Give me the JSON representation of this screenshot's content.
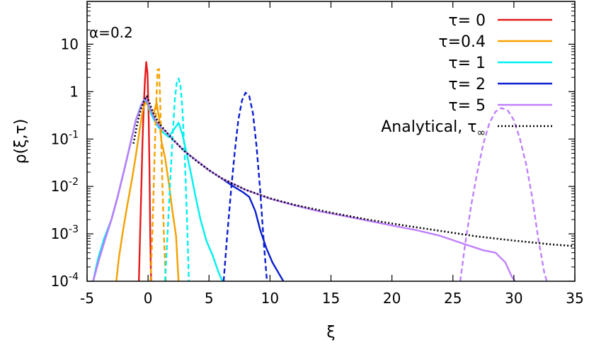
{
  "chart_data": {
    "type": "line",
    "xlabel": "ξ",
    "ylabel": "ρ(ξ,τ)",
    "annotation": "α=0.2",
    "xlim": [
      -5,
      35
    ],
    "ylim": [
      0.0001,
      80
    ],
    "yscale": "log",
    "grid": false,
    "legend_position": "top-right",
    "x_ticks": [
      {
        "v": -5,
        "label": "-5"
      },
      {
        "v": 0,
        "label": "0"
      },
      {
        "v": 5,
        "label": "5"
      },
      {
        "v": 10,
        "label": "10"
      },
      {
        "v": 15,
        "label": "15"
      },
      {
        "v": 20,
        "label": "20"
      },
      {
        "v": 25,
        "label": "25"
      },
      {
        "v": 30,
        "label": "30"
      },
      {
        "v": 35,
        "label": "35"
      }
    ],
    "y_ticks": [
      {
        "v": 10,
        "base": "10",
        "exp": ""
      },
      {
        "v": 1,
        "base": "1",
        "exp": ""
      },
      {
        "v": 0.1,
        "base": "10",
        "exp": "-1"
      },
      {
        "v": 0.01,
        "base": "10",
        "exp": "-2"
      },
      {
        "v": 0.001,
        "base": "10",
        "exp": "-3"
      },
      {
        "v": 0.0001,
        "base": "10",
        "exp": "-4"
      }
    ],
    "legend": [
      {
        "label": "τ= 0",
        "color": "#e41a1c",
        "dash": false
      },
      {
        "label": "τ=0.4",
        "color": "#f5a100",
        "dash": false
      },
      {
        "label": "τ= 1",
        "color": "#00f0f0",
        "dash": false
      },
      {
        "label": "τ= 2",
        "color": "#0a1fd0",
        "dash": false
      },
      {
        "label": "τ= 5",
        "color": "#c080ff",
        "dash": false
      },
      {
        "label": "Analytical, τ",
        "sub": "∞",
        "color": "#000000",
        "dash": true
      }
    ],
    "series": [
      {
        "color": "#e41a1c",
        "style": "solid",
        "points": [
          [
            -0.75,
            0.0001
          ],
          [
            -0.65,
            0.001
          ],
          [
            -0.55,
            0.01
          ],
          [
            -0.45,
            0.1
          ],
          [
            -0.35,
            0.5
          ],
          [
            -0.25,
            1.8
          ],
          [
            -0.15,
            4.2
          ],
          [
            -0.05,
            2.5
          ],
          [
            0.05,
            0.3
          ],
          [
            0.12,
            0.02
          ],
          [
            0.18,
            0.001
          ],
          [
            0.25,
            0.0001
          ]
        ]
      },
      {
        "color": "#f5a100",
        "style": "solid",
        "points": [
          [
            -2.6,
            0.0001
          ],
          [
            -2.4,
            0.0003
          ],
          [
            -2.1,
            0.001
          ],
          [
            -1.7,
            0.004
          ],
          [
            -1.3,
            0.015
          ],
          [
            -1.0,
            0.045
          ],
          [
            -0.7,
            0.15
          ],
          [
            -0.4,
            0.45
          ],
          [
            -0.15,
            0.62
          ],
          [
            0.1,
            0.42
          ],
          [
            0.4,
            0.3
          ],
          [
            0.7,
            0.6
          ],
          [
            0.9,
            0.28
          ],
          [
            1.1,
            0.09
          ],
          [
            1.4,
            0.04
          ],
          [
            1.7,
            0.012
          ],
          [
            2.0,
            0.003
          ],
          [
            2.3,
            0.0009
          ],
          [
            2.5,
            0.0001
          ]
        ]
      },
      {
        "color": "#00f0f0",
        "style": "solid",
        "points": [
          [
            -4.5,
            0.0001
          ],
          [
            -4.1,
            0.0003
          ],
          [
            -3.6,
            0.0008
          ],
          [
            -3.0,
            0.002
          ],
          [
            -2.5,
            0.006
          ],
          [
            -2.0,
            0.02
          ],
          [
            -1.5,
            0.07
          ],
          [
            -1.0,
            0.25
          ],
          [
            -0.6,
            0.5
          ],
          [
            -0.25,
            0.7
          ],
          [
            0.0,
            0.55
          ],
          [
            0.3,
            0.32
          ],
          [
            0.7,
            0.2
          ],
          [
            1.2,
            0.14
          ],
          [
            1.7,
            0.11
          ],
          [
            2.2,
            0.17
          ],
          [
            2.5,
            0.22
          ],
          [
            2.8,
            0.13
          ],
          [
            3.1,
            0.06
          ],
          [
            3.5,
            0.02
          ],
          [
            3.9,
            0.006
          ],
          [
            4.3,
            0.002
          ],
          [
            4.8,
            0.0007
          ],
          [
            5.3,
            0.00035
          ],
          [
            5.8,
            0.00015
          ],
          [
            6.1,
            0.0001
          ]
        ]
      },
      {
        "color": "#0a1fd0",
        "style": "solid",
        "points": [
          [
            -4.5,
            0.0001
          ],
          [
            -4.0,
            0.0003
          ],
          [
            -3.5,
            0.0008
          ],
          [
            -3.0,
            0.002
          ],
          [
            -2.5,
            0.006
          ],
          [
            -2.0,
            0.02
          ],
          [
            -1.5,
            0.07
          ],
          [
            -1.0,
            0.25
          ],
          [
            -0.5,
            0.55
          ],
          [
            -0.2,
            0.75
          ],
          [
            0.1,
            0.5
          ],
          [
            0.6,
            0.25
          ],
          [
            1.0,
            0.18
          ],
          [
            1.5,
            0.14
          ],
          [
            2.0,
            0.1
          ],
          [
            3.0,
            0.055
          ],
          [
            4.0,
            0.035
          ],
          [
            5.0,
            0.022
          ],
          [
            6.0,
            0.015
          ],
          [
            7.0,
            0.01
          ],
          [
            7.8,
            0.0075
          ],
          [
            8.3,
            0.006
          ],
          [
            8.8,
            0.003
          ],
          [
            9.2,
            0.0012
          ],
          [
            9.7,
            0.0005
          ],
          [
            10.2,
            0.00025
          ],
          [
            10.7,
            0.00015
          ],
          [
            11.1,
            0.0001
          ]
        ]
      },
      {
        "color": "#c080ff",
        "style": "solid",
        "points": [
          [
            -4.5,
            0.0001
          ],
          [
            -4.0,
            0.0003
          ],
          [
            -3.5,
            0.0008
          ],
          [
            -3.0,
            0.002
          ],
          [
            -2.5,
            0.006
          ],
          [
            -2.0,
            0.02
          ],
          [
            -1.5,
            0.07
          ],
          [
            -1.0,
            0.25
          ],
          [
            -0.5,
            0.55
          ],
          [
            -0.2,
            0.75
          ],
          [
            0.1,
            0.5
          ],
          [
            0.6,
            0.25
          ],
          [
            1.0,
            0.18
          ],
          [
            1.5,
            0.14
          ],
          [
            2.0,
            0.1
          ],
          [
            3.0,
            0.055
          ],
          [
            4.0,
            0.035
          ],
          [
            5.0,
            0.022
          ],
          [
            6.0,
            0.015
          ],
          [
            8.0,
            0.0085
          ],
          [
            10.0,
            0.0055
          ],
          [
            12.0,
            0.004
          ],
          [
            14.0,
            0.003
          ],
          [
            16.0,
            0.0024
          ],
          [
            18.0,
            0.0019
          ],
          [
            20.0,
            0.0015
          ],
          [
            22.0,
            0.0012
          ],
          [
            24.0,
            0.0009
          ],
          [
            26.0,
            0.0006
          ],
          [
            27.5,
            0.00045
          ],
          [
            28.5,
            0.0004
          ],
          [
            29.3,
            0.00025
          ],
          [
            29.8,
            0.00013
          ],
          [
            30.1,
            0.0001
          ]
        ]
      },
      {
        "color": "#f5a100",
        "style": "dash",
        "points": [
          [
            0.2,
            0.0001
          ],
          [
            0.35,
            0.001
          ],
          [
            0.5,
            0.02
          ],
          [
            0.65,
            0.4
          ],
          [
            0.78,
            2.9
          ],
          [
            0.9,
            3.0
          ],
          [
            1.0,
            0.6
          ],
          [
            1.15,
            0.02
          ],
          [
            1.3,
            0.001
          ],
          [
            1.45,
            0.0001
          ]
        ]
      },
      {
        "color": "#00f0f0",
        "style": "dash",
        "points": [
          [
            1.4,
            0.0001
          ],
          [
            1.6,
            0.001
          ],
          [
            1.8,
            0.01
          ],
          [
            2.0,
            0.1
          ],
          [
            2.2,
            0.7
          ],
          [
            2.35,
            1.5
          ],
          [
            2.5,
            1.9
          ],
          [
            2.65,
            1.4
          ],
          [
            2.8,
            0.5
          ],
          [
            3.0,
            0.05
          ],
          [
            3.2,
            0.002
          ],
          [
            3.35,
            0.0001
          ]
        ]
      },
      {
        "color": "#0a1fd0",
        "style": "dash",
        "points": [
          [
            6.2,
            0.0001
          ],
          [
            6.5,
            0.001
          ],
          [
            6.8,
            0.008
          ],
          [
            7.1,
            0.05
          ],
          [
            7.4,
            0.25
          ],
          [
            7.7,
            0.65
          ],
          [
            8.0,
            0.95
          ],
          [
            8.3,
            0.8
          ],
          [
            8.6,
            0.35
          ],
          [
            8.9,
            0.07
          ],
          [
            9.2,
            0.008
          ],
          [
            9.5,
            0.0006
          ],
          [
            9.75,
            0.0001
          ]
        ]
      },
      {
        "color": "#c080ff",
        "style": "dash",
        "points": [
          [
            25.6,
            0.0001
          ],
          [
            26.0,
            0.0006
          ],
          [
            26.5,
            0.004
          ],
          [
            27.0,
            0.02
          ],
          [
            27.5,
            0.08
          ],
          [
            28.0,
            0.22
          ],
          [
            28.5,
            0.38
          ],
          [
            29.0,
            0.45
          ],
          [
            29.5,
            0.4
          ],
          [
            30.0,
            0.25
          ],
          [
            30.5,
            0.1
          ],
          [
            31.0,
            0.03
          ],
          [
            31.5,
            0.006
          ],
          [
            32.0,
            0.0008
          ],
          [
            32.5,
            0.00015
          ],
          [
            32.7,
            0.0001
          ]
        ]
      },
      {
        "color": "#000000",
        "style": "dot",
        "points": [
          [
            -1.2,
            0.08
          ],
          [
            -0.9,
            0.2
          ],
          [
            -0.6,
            0.42
          ],
          [
            -0.3,
            0.68
          ],
          [
            -0.1,
            0.8
          ],
          [
            0.1,
            0.6
          ],
          [
            0.5,
            0.32
          ],
          [
            1.0,
            0.2
          ],
          [
            1.5,
            0.14
          ],
          [
            2.0,
            0.1
          ],
          [
            3.0,
            0.055
          ],
          [
            4.0,
            0.034
          ],
          [
            5.0,
            0.022
          ],
          [
            6.0,
            0.015
          ],
          [
            8.0,
            0.0085
          ],
          [
            10.0,
            0.0056
          ],
          [
            12.0,
            0.0041
          ],
          [
            15.0,
            0.0028
          ],
          [
            18.0,
            0.002
          ],
          [
            21.0,
            0.0015
          ],
          [
            24.0,
            0.00115
          ],
          [
            27.0,
            0.00088
          ],
          [
            30.0,
            0.00072
          ],
          [
            33.0,
            0.0006
          ],
          [
            35.0,
            0.00055
          ]
        ]
      }
    ]
  }
}
